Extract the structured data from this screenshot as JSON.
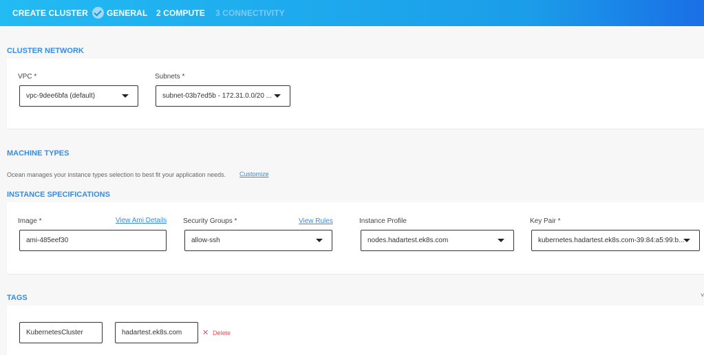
{
  "header": {
    "title": "CREATE CLUSTER",
    "steps": [
      {
        "label": "GENERAL",
        "state": "completed"
      },
      {
        "label": "2 COMPUTE",
        "state": "active"
      },
      {
        "label": "3 CONNECTIVITY",
        "state": "inactive"
      }
    ]
  },
  "cluster_network": {
    "title": "CLUSTER NETWORK",
    "vpc": {
      "label": "VPC *",
      "value": "vpc-9dee6bfa (default)"
    },
    "subnets": {
      "label": "Subnets *",
      "value": "subnet-03b7ed5b - 172.31.0.0/20 ..."
    }
  },
  "machine_types": {
    "title": "MACHINE TYPES",
    "description": "Ocean manages your instance types selection to best fit your application needs.",
    "customize_link": "Customize"
  },
  "instance_specs": {
    "title": "INSTANCE SPECIFICATIONS",
    "image": {
      "label": "Image *",
      "link": "View Ami Details",
      "value": "ami-485eef30"
    },
    "security_groups": {
      "label": "Security Groups *",
      "link": "View Rules",
      "value": "allow-ssh"
    },
    "instance_profile": {
      "label": "Instance Profile",
      "value": "nodes.hadartest.ek8s.com"
    },
    "key_pair": {
      "label": "Key Pair *",
      "value": "kubernetes.hadartest.ek8s.com-39:84:a5:99:b..."
    }
  },
  "tags": {
    "title": "TAGS",
    "rows": [
      {
        "key": "KubernetesCluster",
        "value": "hadartest.ek8s.com",
        "delete_label": "Delete"
      }
    ]
  },
  "colors": {
    "accent": "#2d8ef0",
    "delete": "#e8505b",
    "header_start": "#22bbf3",
    "header_end": "#1a6fe6"
  }
}
